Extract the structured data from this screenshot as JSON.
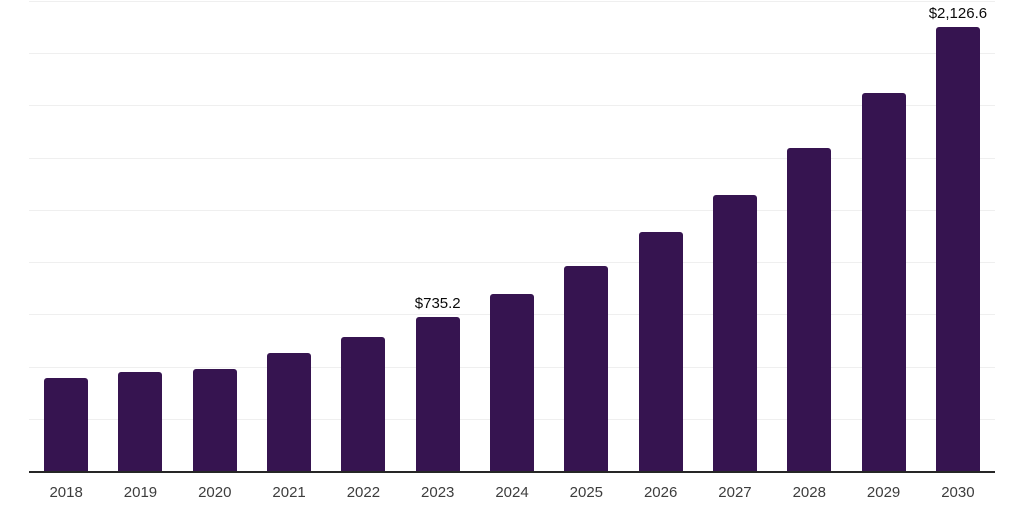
{
  "chart_data": {
    "type": "bar",
    "title": "",
    "xlabel": "",
    "ylabel": "",
    "categories": [
      "2018",
      "2019",
      "2020",
      "2021",
      "2022",
      "2023",
      "2024",
      "2025",
      "2026",
      "2027",
      "2028",
      "2029",
      "2030"
    ],
    "values": [
      445,
      472,
      486,
      564,
      642,
      735.2,
      849,
      981,
      1143,
      1322,
      1546,
      1809,
      2126.6
    ],
    "data_labels": [
      "",
      "",
      "",
      "",
      "",
      "$735.2",
      "",
      "",
      "",
      "",
      "",
      "",
      "$2,126.6"
    ],
    "currency_prefix": "$",
    "ylim": [
      0,
      2250
    ],
    "gridline_interval": 250,
    "grid": "horizontal",
    "legend": "none",
    "colors": {
      "bar": "#361450",
      "gridline": "#efefef",
      "axis_line": "#262626",
      "value_label": "#0a0a0a",
      "tick_label": "#3d3d3d",
      "background": "#ffffff"
    }
  }
}
